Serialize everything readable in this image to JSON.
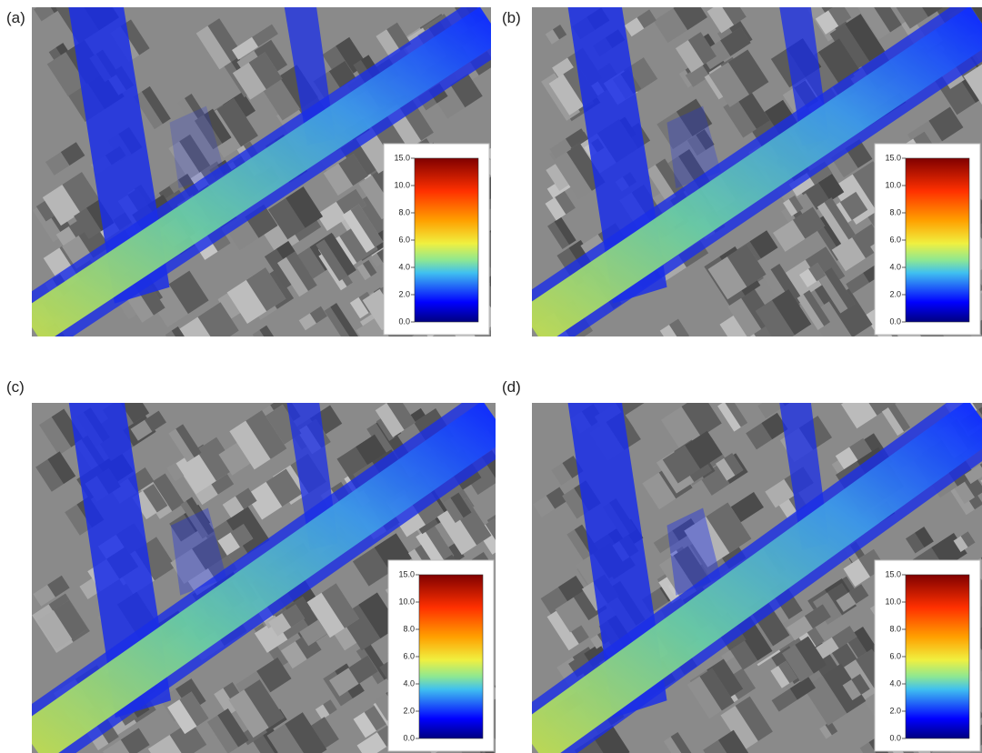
{
  "panels": [
    {
      "label": "(a)",
      "colorbar": {
        "ticks": [
          "15.0",
          "10.0",
          "8.0",
          "6.0",
          "4.0",
          "2.0",
          "0.0"
        ]
      }
    },
    {
      "label": "(b)",
      "colorbar": {
        "ticks": [
          "15.0",
          "10.0",
          "8.0",
          "6.0",
          "4.0",
          "2.0",
          "0.0"
        ]
      }
    },
    {
      "label": "(c)",
      "colorbar": {
        "ticks": [
          "15.0",
          "10.0",
          "8.0",
          "6.0",
          "4.0",
          "2.0",
          "0.0"
        ]
      }
    },
    {
      "label": "(d)",
      "colorbar": {
        "ticks": [
          "15.0",
          "10.0",
          "8.0",
          "6.0",
          "4.0",
          "2.0",
          "0.0"
        ]
      }
    }
  ]
}
